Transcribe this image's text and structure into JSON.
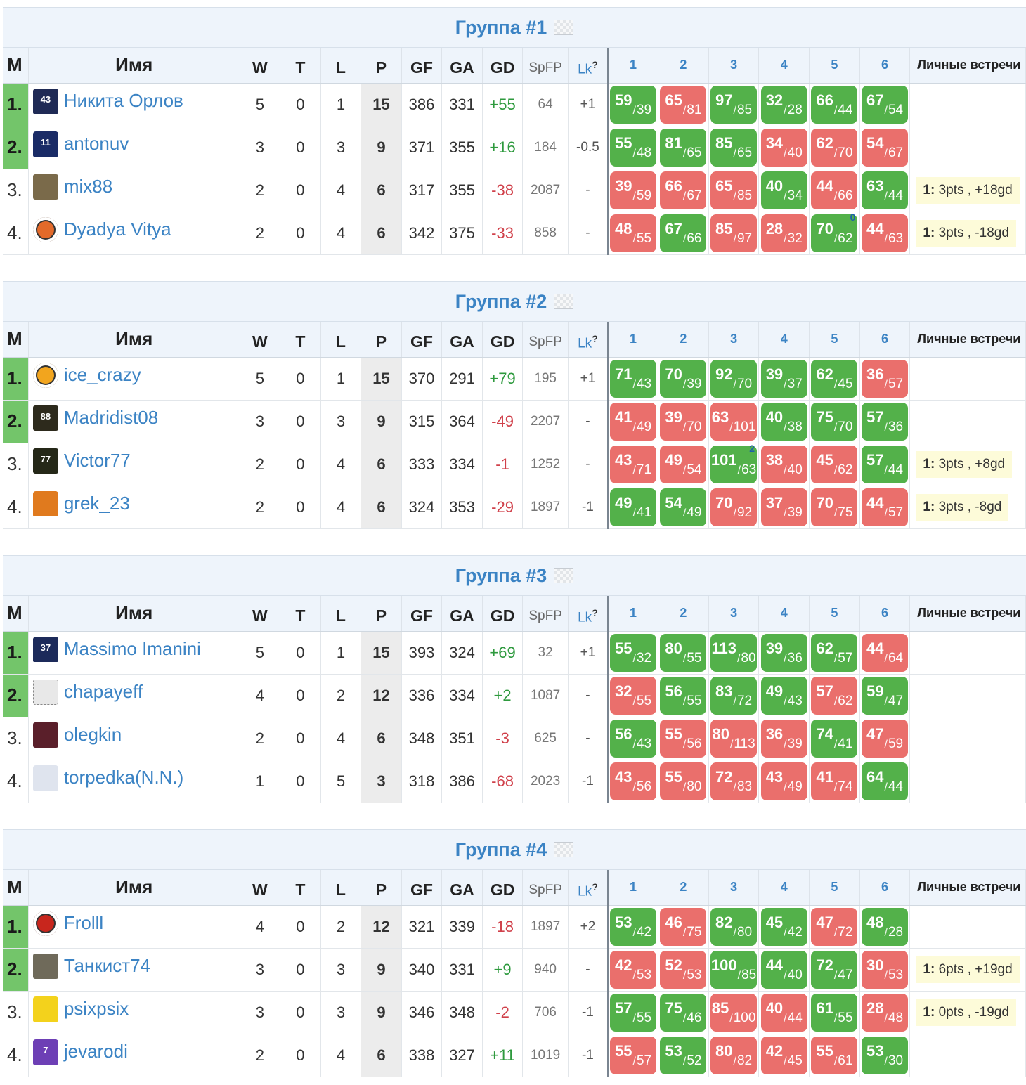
{
  "header": {
    "m": "M",
    "name": "Имя",
    "w": "W",
    "t": "T",
    "l": "L",
    "p": "P",
    "gf": "GF",
    "ga": "GA",
    "gd": "GD",
    "spfp": "SpFP",
    "lk": "Lk",
    "lk_help": "?",
    "match_numbers": [
      "1",
      "2",
      "3",
      "4",
      "5",
      "6"
    ],
    "h2h": "Личные встречи"
  },
  "colors": {
    "win": "#53b14a",
    "loss": "#ea6f6c",
    "qualify": "#73c56a",
    "link": "#3b83c4"
  },
  "groups": [
    {
      "title": "Группа #1",
      "rows": [
        {
          "pos": "1.",
          "q": true,
          "name": "Никита Орлов",
          "avatar": {
            "type": "jersey",
            "color": "#1f2a55",
            "text": "43"
          },
          "w": "5",
          "t": "0",
          "l": "1",
          "p": "15",
          "gf": "386",
          "ga": "331",
          "gd": "+55",
          "spfp": "64",
          "lk": "+1",
          "matches": [
            [
              "59",
              "39",
              "w"
            ],
            [
              "65",
              "81",
              "l"
            ],
            [
              "97",
              "85",
              "w"
            ],
            [
              "32",
              "28",
              "w"
            ],
            [
              "66",
              "44",
              "w"
            ],
            [
              "67",
              "54",
              "w"
            ]
          ],
          "h2h": ""
        },
        {
          "pos": "2.",
          "q": true,
          "name": "antonuv",
          "avatar": {
            "type": "jersey",
            "color": "#1a2b66",
            "text": "11"
          },
          "w": "3",
          "t": "0",
          "l": "3",
          "p": "9",
          "gf": "371",
          "ga": "355",
          "gd": "+16",
          "spfp": "184",
          "lk": "-0.5",
          "matches": [
            [
              "55",
              "48",
              "w"
            ],
            [
              "81",
              "65",
              "w"
            ],
            [
              "85",
              "65",
              "w"
            ],
            [
              "34",
              "40",
              "l"
            ],
            [
              "62",
              "70",
              "l"
            ],
            [
              "54",
              "67",
              "l"
            ]
          ],
          "h2h": ""
        },
        {
          "pos": "3.",
          "q": false,
          "name": "mix88",
          "avatar": {
            "type": "photo",
            "color": "#7a6a4a",
            "text": ""
          },
          "w": "2",
          "t": "0",
          "l": "4",
          "p": "6",
          "gf": "317",
          "ga": "355",
          "gd": "-38",
          "spfp": "2087",
          "lk": "-",
          "matches": [
            [
              "39",
              "59",
              "l"
            ],
            [
              "66",
              "67",
              "l"
            ],
            [
              "65",
              "85",
              "l"
            ],
            [
              "40",
              "34",
              "w"
            ],
            [
              "44",
              "66",
              "l"
            ],
            [
              "63",
              "44",
              "w"
            ]
          ],
          "h2h": {
            "n": "1:",
            "t": "3pts , +18gd"
          }
        },
        {
          "pos": "4.",
          "q": false,
          "name": "Dyadya Vitya",
          "avatar": {
            "type": "logo",
            "color": "#e36a2a",
            "text": ""
          },
          "w": "2",
          "t": "0",
          "l": "4",
          "p": "6",
          "gf": "342",
          "ga": "375",
          "gd": "-33",
          "spfp": "858",
          "lk": "-",
          "matches": [
            [
              "48",
              "55",
              "l"
            ],
            [
              "67",
              "66",
              "w"
            ],
            [
              "85",
              "97",
              "l"
            ],
            [
              "28",
              "32",
              "l"
            ],
            [
              "70",
              "62",
              "w",
              "0"
            ],
            [
              "44",
              "63",
              "l"
            ]
          ],
          "h2h": {
            "n": "1:",
            "t": "3pts , -18gd"
          }
        }
      ]
    },
    {
      "title": "Группа #2",
      "rows": [
        {
          "pos": "1.",
          "q": true,
          "name": "ice_crazy",
          "avatar": {
            "type": "logo",
            "color": "#f2a51e",
            "text": ""
          },
          "w": "5",
          "t": "0",
          "l": "1",
          "p": "15",
          "gf": "370",
          "ga": "291",
          "gd": "+79",
          "spfp": "195",
          "lk": "+1",
          "matches": [
            [
              "71",
              "43",
              "w"
            ],
            [
              "70",
              "39",
              "w"
            ],
            [
              "92",
              "70",
              "w"
            ],
            [
              "39",
              "37",
              "w"
            ],
            [
              "62",
              "45",
              "w"
            ],
            [
              "36",
              "57",
              "l"
            ]
          ],
          "h2h": ""
        },
        {
          "pos": "2.",
          "q": true,
          "name": "Madridist08",
          "avatar": {
            "type": "photo",
            "color": "#2d2a1c",
            "text": "88"
          },
          "w": "3",
          "t": "0",
          "l": "3",
          "p": "9",
          "gf": "315",
          "ga": "364",
          "gd": "-49",
          "spfp": "2207",
          "lk": "-",
          "matches": [
            [
              "41",
              "49",
              "l"
            ],
            [
              "39",
              "70",
              "l"
            ],
            [
              "63",
              "101",
              "l"
            ],
            [
              "40",
              "38",
              "w"
            ],
            [
              "75",
              "70",
              "w"
            ],
            [
              "57",
              "36",
              "w"
            ]
          ],
          "h2h": ""
        },
        {
          "pos": "3.",
          "q": false,
          "name": "Victor77",
          "avatar": {
            "type": "photo",
            "color": "#252818",
            "text": "77"
          },
          "w": "2",
          "t": "0",
          "l": "4",
          "p": "6",
          "gf": "333",
          "ga": "334",
          "gd": "-1",
          "spfp": "1252",
          "lk": "-",
          "matches": [
            [
              "43",
              "71",
              "l"
            ],
            [
              "49",
              "54",
              "l"
            ],
            [
              "101",
              "63",
              "w",
              "2"
            ],
            [
              "38",
              "40",
              "l"
            ],
            [
              "45",
              "62",
              "l"
            ],
            [
              "57",
              "44",
              "w"
            ]
          ],
          "h2h": {
            "n": "1:",
            "t": "3pts , +8gd"
          }
        },
        {
          "pos": "4.",
          "q": false,
          "name": "grek_23",
          "avatar": {
            "type": "jersey",
            "color": "#e07a1e",
            "text": ""
          },
          "w": "2",
          "t": "0",
          "l": "4",
          "p": "6",
          "gf": "324",
          "ga": "353",
          "gd": "-29",
          "spfp": "1897",
          "lk": "-1",
          "matches": [
            [
              "49",
              "41",
              "w"
            ],
            [
              "54",
              "49",
              "w"
            ],
            [
              "70",
              "92",
              "l"
            ],
            [
              "37",
              "39",
              "l"
            ],
            [
              "70",
              "75",
              "l"
            ],
            [
              "44",
              "57",
              "l"
            ]
          ],
          "h2h": {
            "n": "1:",
            "t": "3pts , -8gd"
          }
        }
      ]
    },
    {
      "title": "Группа #3",
      "rows": [
        {
          "pos": "1.",
          "q": true,
          "name": "Massimo Imanini",
          "avatar": {
            "type": "jersey",
            "color": "#1c2a5a",
            "text": "37"
          },
          "w": "5",
          "t": "0",
          "l": "1",
          "p": "15",
          "gf": "393",
          "ga": "324",
          "gd": "+69",
          "spfp": "32",
          "lk": "+1",
          "matches": [
            [
              "55",
              "32",
              "w"
            ],
            [
              "80",
              "55",
              "w"
            ],
            [
              "113",
              "80",
              "w"
            ],
            [
              "39",
              "36",
              "w"
            ],
            [
              "62",
              "57",
              "w"
            ],
            [
              "44",
              "64",
              "l"
            ]
          ],
          "h2h": ""
        },
        {
          "pos": "2.",
          "q": true,
          "name": "chapayeff",
          "avatar": {
            "type": "sketch",
            "color": "#e8e8e8",
            "text": ""
          },
          "w": "4",
          "t": "0",
          "l": "2",
          "p": "12",
          "gf": "336",
          "ga": "334",
          "gd": "+2",
          "spfp": "1087",
          "lk": "-",
          "matches": [
            [
              "32",
              "55",
              "l"
            ],
            [
              "56",
              "55",
              "w"
            ],
            [
              "83",
              "72",
              "w"
            ],
            [
              "49",
              "43",
              "w"
            ],
            [
              "57",
              "62",
              "l"
            ],
            [
              "59",
              "47",
              "w"
            ]
          ],
          "h2h": ""
        },
        {
          "pos": "3.",
          "q": false,
          "name": "olegkin",
          "avatar": {
            "type": "photo",
            "color": "#5a1f2a",
            "text": ""
          },
          "w": "2",
          "t": "0",
          "l": "4",
          "p": "6",
          "gf": "348",
          "ga": "351",
          "gd": "-3",
          "spfp": "625",
          "lk": "-",
          "matches": [
            [
              "56",
              "43",
              "w"
            ],
            [
              "55",
              "56",
              "l"
            ],
            [
              "80",
              "113",
              "l"
            ],
            [
              "36",
              "39",
              "l"
            ],
            [
              "74",
              "41",
              "w"
            ],
            [
              "47",
              "59",
              "l"
            ]
          ],
          "h2h": ""
        },
        {
          "pos": "4.",
          "q": false,
          "name": "torpedka(N.N.)",
          "avatar": {
            "type": "jersey",
            "color": "#dfe4ee",
            "text": ""
          },
          "w": "1",
          "t": "0",
          "l": "5",
          "p": "3",
          "gf": "318",
          "ga": "386",
          "gd": "-68",
          "spfp": "2023",
          "lk": "-1",
          "matches": [
            [
              "43",
              "56",
              "l"
            ],
            [
              "55",
              "80",
              "l"
            ],
            [
              "72",
              "83",
              "l"
            ],
            [
              "43",
              "49",
              "l"
            ],
            [
              "41",
              "74",
              "l"
            ],
            [
              "64",
              "44",
              "w"
            ]
          ],
          "h2h": ""
        }
      ]
    },
    {
      "title": "Группа #4",
      "rows": [
        {
          "pos": "1.",
          "q": true,
          "name": "Frolll",
          "avatar": {
            "type": "logo",
            "color": "#c8261d",
            "text": ""
          },
          "w": "4",
          "t": "0",
          "l": "2",
          "p": "12",
          "gf": "321",
          "ga": "339",
          "gd": "-18",
          "spfp": "1897",
          "lk": "+2",
          "matches": [
            [
              "53",
              "42",
              "w"
            ],
            [
              "46",
              "75",
              "l"
            ],
            [
              "82",
              "80",
              "w"
            ],
            [
              "45",
              "42",
              "w"
            ],
            [
              "47",
              "72",
              "l"
            ],
            [
              "48",
              "28",
              "w"
            ]
          ],
          "h2h": ""
        },
        {
          "pos": "2.",
          "q": true,
          "name": "Танкист74",
          "avatar": {
            "type": "photo",
            "color": "#6f6a5a",
            "text": ""
          },
          "w": "3",
          "t": "0",
          "l": "3",
          "p": "9",
          "gf": "340",
          "ga": "331",
          "gd": "+9",
          "spfp": "940",
          "lk": "-",
          "matches": [
            [
              "42",
              "53",
              "l"
            ],
            [
              "52",
              "53",
              "l"
            ],
            [
              "100",
              "85",
              "w"
            ],
            [
              "44",
              "40",
              "w"
            ],
            [
              "72",
              "47",
              "w"
            ],
            [
              "30",
              "53",
              "l"
            ]
          ],
          "h2h": {
            "n": "1:",
            "t": "6pts , +19gd"
          }
        },
        {
          "pos": "3.",
          "q": false,
          "name": "psixpsix",
          "avatar": {
            "type": "jersey",
            "color": "#f3d21c",
            "text": ""
          },
          "w": "3",
          "t": "0",
          "l": "3",
          "p": "9",
          "gf": "346",
          "ga": "348",
          "gd": "-2",
          "spfp": "706",
          "lk": "-1",
          "matches": [
            [
              "57",
              "55",
              "w"
            ],
            [
              "75",
              "46",
              "w"
            ],
            [
              "85",
              "100",
              "l"
            ],
            [
              "40",
              "44",
              "l"
            ],
            [
              "61",
              "55",
              "w"
            ],
            [
              "28",
              "48",
              "l"
            ]
          ],
          "h2h": {
            "n": "1:",
            "t": "0pts , -19gd"
          }
        },
        {
          "pos": "4.",
          "q": false,
          "name": "jevarodi",
          "avatar": {
            "type": "jersey",
            "color": "#6d3fb5",
            "text": "7"
          },
          "w": "2",
          "t": "0",
          "l": "4",
          "p": "6",
          "gf": "338",
          "ga": "327",
          "gd": "+11",
          "spfp": "1019",
          "lk": "-1",
          "matches": [
            [
              "55",
              "57",
              "l"
            ],
            [
              "53",
              "52",
              "w"
            ],
            [
              "80",
              "82",
              "l"
            ],
            [
              "42",
              "45",
              "l"
            ],
            [
              "55",
              "61",
              "l"
            ],
            [
              "53",
              "30",
              "w"
            ]
          ],
          "h2h": ""
        }
      ]
    }
  ]
}
